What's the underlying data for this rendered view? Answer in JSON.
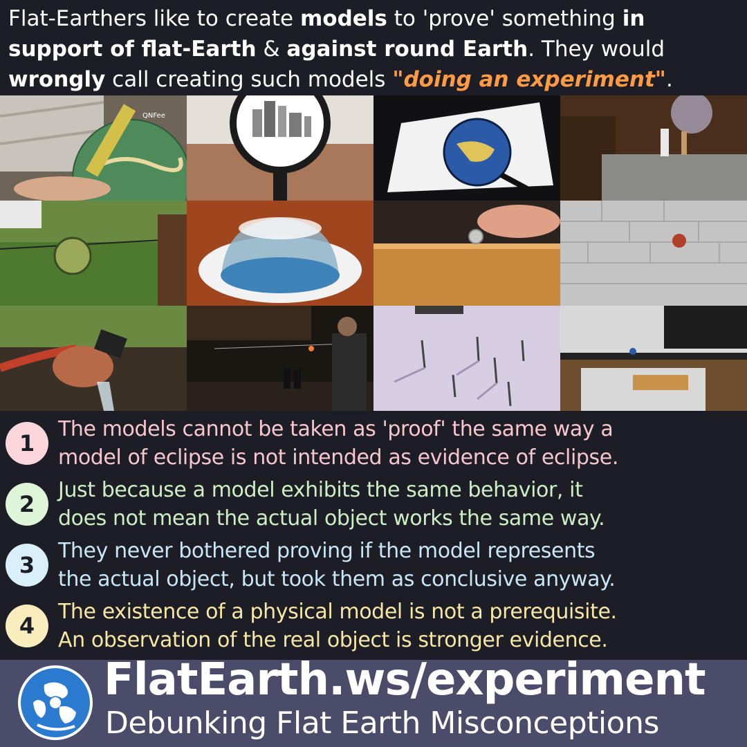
{
  "header": {
    "line1": [
      {
        "text": "Flat-Earthers like to create ",
        "style": "normal"
      },
      {
        "text": "models",
        "style": "bold"
      },
      {
        "text": " to 'prove' something ",
        "style": "normal"
      },
      {
        "text": "in",
        "style": "bold"
      }
    ],
    "line2": [
      {
        "text": "support of flat-Earth",
        "style": "bold"
      },
      {
        "text": " & ",
        "style": "normal"
      },
      {
        "text": "against round Earth",
        "style": "bold"
      },
      {
        "text": ". They would",
        "style": "normal"
      }
    ],
    "line3": [
      {
        "text": "wrongly",
        "style": "bold"
      },
      {
        "text": " call creating such models ",
        "style": "normal"
      },
      {
        "text": "\"doing an experiment\"",
        "style": "highlight"
      },
      {
        "text": ".",
        "style": "normal"
      }
    ]
  },
  "photos": {
    "watermark_1": "QNFee"
  },
  "points": [
    {
      "number": "1",
      "line1": "The models cannot be taken as 'proof' the same way a",
      "line2": "model of eclipse is not intended as evidence of eclipse.",
      "color": "#f7c6cf",
      "badge": "#fbd7dd"
    },
    {
      "number": "2",
      "line1": "Just because a model exhibits the same behavior, it",
      "line2": "does not mean the actual object works the same way.",
      "color": "#cdeec4",
      "badge": "#dff5d8"
    },
    {
      "number": "3",
      "line1": "They never bothered proving if the model represents",
      "line2": "the actual object, but took them as conclusive anyway.",
      "color": "#c8e6f5",
      "badge": "#d9eff9"
    },
    {
      "number": "4",
      "line1": "The existence of a physical model is not a prerequisite.",
      "line2": "An observation of the real object is stronger evidence.",
      "color": "#f7e7a6",
      "badge": "#faedbd"
    }
  ],
  "footer": {
    "site": "FlatEarth.ws/experiment",
    "tagline": "Debunking Flat Earth Misconceptions"
  },
  "colors": {
    "background": "#1d1d26",
    "highlight": "#ff9a45",
    "footer_bg": "#4b4b6a"
  }
}
